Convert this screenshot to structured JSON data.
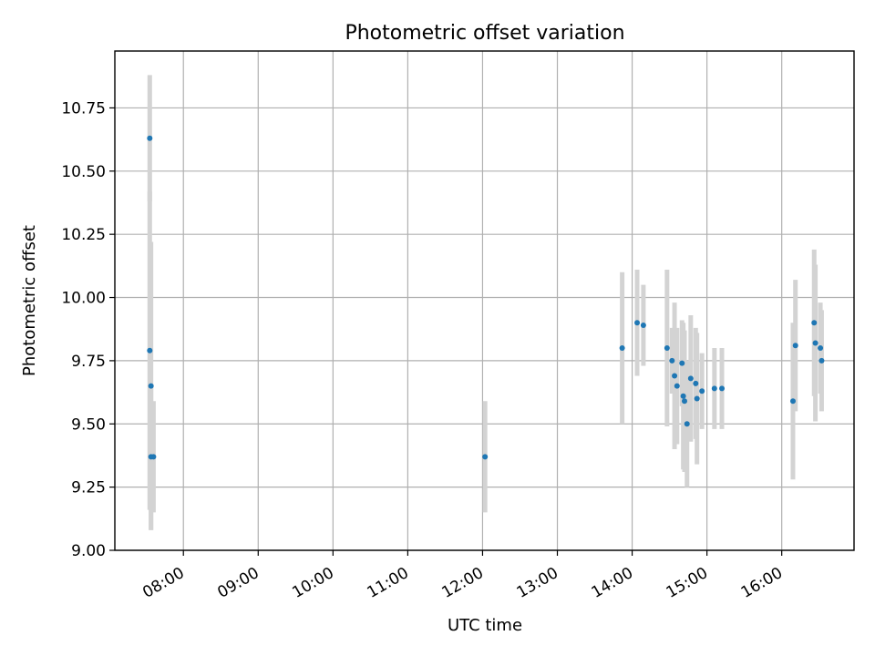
{
  "chart_data": {
    "type": "scatter",
    "title": "Photometric offset variation",
    "xlabel": "UTC time",
    "ylabel": "Photometric offset",
    "ylim": [
      9.0,
      10.975
    ],
    "xlim": [
      "07:05",
      "16:58"
    ],
    "grid": true,
    "legend": "none",
    "x_ticks": [
      "08:00",
      "09:00",
      "10:00",
      "11:00",
      "12:00",
      "13:00",
      "14:00",
      "15:00",
      "16:00"
    ],
    "y_ticks": [
      "9.00",
      "9.25",
      "9.50",
      "9.75",
      "10.00",
      "10.25",
      "10.50",
      "10.75"
    ],
    "colors": {
      "point": "#1f77b4",
      "errorbar": "#d3d3d3",
      "grid": "#b0b0b0"
    },
    "series": [
      {
        "points": [
          {
            "x": "07:33",
            "y": 10.63,
            "err": 0.25
          },
          {
            "x": "07:33",
            "y": 9.79,
            "err": 0.63
          },
          {
            "x": "07:34",
            "y": 9.65,
            "err": 0.57
          },
          {
            "x": "07:34",
            "y": 9.37,
            "err": 0.29
          },
          {
            "x": "07:36",
            "y": 9.37,
            "err": 0.22
          },
          {
            "x": "12:02",
            "y": 9.37,
            "err": 0.22
          },
          {
            "x": "13:52",
            "y": 9.8,
            "err": 0.3
          },
          {
            "x": "14:04",
            "y": 9.9,
            "err": 0.21
          },
          {
            "x": "14:09",
            "y": 9.89,
            "err": 0.16
          },
          {
            "x": "14:28",
            "y": 9.8,
            "err": 0.31
          },
          {
            "x": "14:32",
            "y": 9.75,
            "err": 0.13
          },
          {
            "x": "14:34",
            "y": 9.69,
            "err": 0.29
          },
          {
            "x": "14:36",
            "y": 9.65,
            "err": 0.23
          },
          {
            "x": "14:40",
            "y": 9.74,
            "err": 0.17
          },
          {
            "x": "14:41",
            "y": 9.61,
            "err": 0.29
          },
          {
            "x": "14:42",
            "y": 9.59,
            "err": 0.28
          },
          {
            "x": "14:44",
            "y": 9.5,
            "err": 0.25
          },
          {
            "x": "14:47",
            "y": 9.68,
            "err": 0.25
          },
          {
            "x": "14:51",
            "y": 9.66,
            "err": 0.22
          },
          {
            "x": "14:52",
            "y": 9.6,
            "err": 0.26
          },
          {
            "x": "14:56",
            "y": 9.63,
            "err": 0.15
          },
          {
            "x": "15:06",
            "y": 9.64,
            "err": 0.16
          },
          {
            "x": "15:12",
            "y": 9.64,
            "err": 0.16
          },
          {
            "x": "16:09",
            "y": 9.59,
            "err": 0.31
          },
          {
            "x": "16:11",
            "y": 9.81,
            "err": 0.26
          },
          {
            "x": "16:26",
            "y": 9.9,
            "err": 0.29
          },
          {
            "x": "16:27",
            "y": 9.82,
            "err": 0.31
          },
          {
            "x": "16:31",
            "y": 9.8,
            "err": 0.18
          },
          {
            "x": "16:32",
            "y": 9.75,
            "err": 0.2
          }
        ]
      }
    ]
  }
}
